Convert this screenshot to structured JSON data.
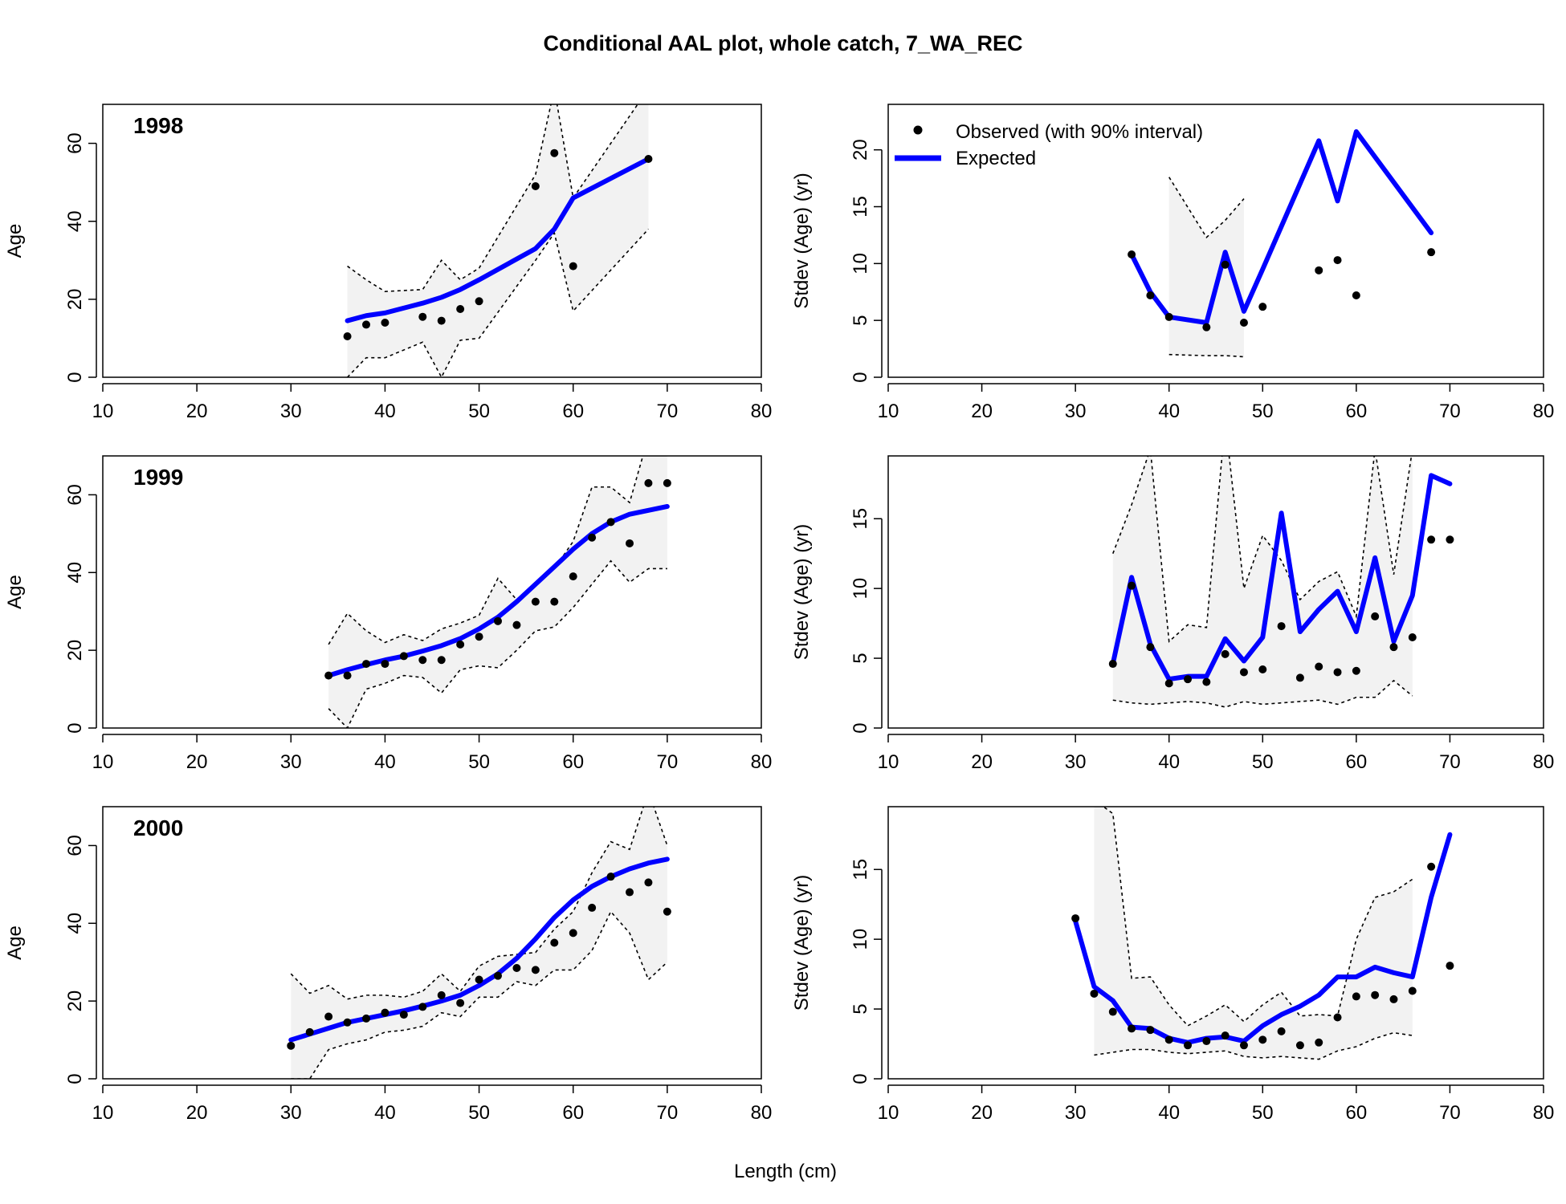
{
  "figure": {
    "title": "Conditional AAL plot, whole catch, 7_WA_REC",
    "xlabel": "Length (cm)",
    "colors": {
      "expected": "#0000ff",
      "observed": "#000000",
      "interval_fill": "#f2f2f2",
      "axis": "#000000"
    }
  },
  "legend": {
    "observed_label": "Observed (with 90% interval)",
    "expected_label": "Expected",
    "placement": "top-left of first stdev panel"
  },
  "chart_data": [
    {
      "type": "line",
      "panel": "age-1998",
      "year_label": "1998",
      "ylabel": "Age",
      "xlim": [
        10,
        80
      ],
      "ylim": [
        0,
        70
      ],
      "xticks": [
        10,
        20,
        30,
        40,
        50,
        60,
        70,
        80
      ],
      "yticks": [
        0,
        20,
        40,
        60
      ],
      "x": [
        36,
        38,
        40,
        44,
        46,
        48,
        50,
        56,
        58,
        60,
        68
      ],
      "observed": [
        10.5,
        13.5,
        14,
        15.5,
        14.5,
        17.5,
        19.5,
        49,
        57.5,
        28.5,
        56
      ],
      "expected": [
        14.5,
        15.8,
        16.5,
        19,
        20.5,
        22.5,
        25,
        33,
        38,
        46,
        56
      ],
      "lower": [
        0,
        5,
        5,
        9,
        0,
        9.5,
        10,
        30,
        37,
        17,
        38
      ],
      "upper": [
        28.5,
        25,
        22,
        22.5,
        30,
        25,
        28,
        52,
        74,
        46,
        74
      ]
    },
    {
      "type": "line",
      "panel": "stdev-1998",
      "ylabel": "Stdev (Age) (yr)",
      "xlim": [
        10,
        80
      ],
      "ylim": [
        0,
        24
      ],
      "xticks": [
        10,
        20,
        30,
        40,
        50,
        60,
        70,
        80
      ],
      "yticks": [
        0,
        5,
        10,
        15,
        20
      ],
      "x": [
        36,
        38,
        40,
        44,
        46,
        48,
        50,
        56,
        58,
        60,
        68
      ],
      "observed": [
        10.8,
        7.2,
        5.3,
        4.4,
        9.9,
        4.8,
        6.2,
        9.4,
        10.3,
        7.2,
        11
      ],
      "expected": [
        10.8,
        7.5,
        5.3,
        4.8,
        11,
        5.8,
        9.5,
        20.8,
        15.5,
        21.6,
        12.7
      ],
      "band_x": [
        40,
        44,
        46,
        48
      ],
      "band_lower": [
        2,
        1.9,
        1.9,
        1.8
      ],
      "band_upper": [
        17.6,
        12.3,
        13.8,
        15.7
      ]
    },
    {
      "type": "line",
      "panel": "age-1999",
      "year_label": "1999",
      "ylabel": "Age",
      "xlim": [
        10,
        80
      ],
      "ylim": [
        0,
        70
      ],
      "xticks": [
        10,
        20,
        30,
        40,
        50,
        60,
        70,
        80
      ],
      "yticks": [
        0,
        20,
        40,
        60
      ],
      "x": [
        34,
        36,
        38,
        40,
        42,
        44,
        46,
        48,
        50,
        52,
        54,
        56,
        58,
        60,
        62,
        64,
        66,
        68,
        70
      ],
      "observed": [
        13.5,
        13.5,
        16.5,
        16.5,
        18.5,
        17.5,
        17.5,
        21.5,
        23.5,
        27.5,
        26.5,
        32.5,
        32.5,
        39,
        49,
        53,
        47.5,
        63,
        63
      ],
      "expected": [
        13.5,
        15,
        16.3,
        17.5,
        18.5,
        19.8,
        21.2,
        23,
        25.5,
        28.5,
        32.5,
        37,
        41.5,
        46,
        50,
        53,
        55,
        56,
        57
      ],
      "lower": [
        5,
        0,
        10,
        11.5,
        13.5,
        13,
        9,
        15,
        16,
        15.5,
        20,
        25,
        26,
        31,
        37,
        43,
        37.5,
        41,
        41
      ],
      "upper": [
        21.5,
        29.5,
        25,
        22,
        24,
        22.5,
        25.5,
        27,
        29,
        38.5,
        33,
        37.5,
        41,
        48,
        62,
        62,
        58,
        75,
        75
      ]
    },
    {
      "type": "line",
      "panel": "stdev-1999",
      "ylabel": "Stdev (Age) (yr)",
      "xlim": [
        10,
        80
      ],
      "ylim": [
        0,
        19.5
      ],
      "xticks": [
        10,
        20,
        30,
        40,
        50,
        60,
        70,
        80
      ],
      "yticks": [
        0,
        5,
        10,
        15
      ],
      "x": [
        34,
        36,
        38,
        40,
        42,
        44,
        46,
        48,
        50,
        52,
        54,
        56,
        58,
        60,
        62,
        64,
        66,
        68,
        70
      ],
      "observed": [
        4.6,
        10.2,
        5.8,
        3.2,
        3.5,
        3.3,
        5.3,
        4,
        4.2,
        7.3,
        3.6,
        4.4,
        4,
        4.1,
        8,
        5.8,
        6.5,
        13.5,
        13.5
      ],
      "expected": [
        4.6,
        10.8,
        6,
        3.5,
        3.7,
        3.7,
        6.4,
        4.8,
        6.5,
        15.4,
        6.9,
        8.5,
        9.8,
        6.9,
        12.2,
        6.2,
        9.5,
        18.1,
        17.5
      ],
      "band_x": [
        34,
        36,
        38,
        40,
        42,
        44,
        46,
        48,
        50,
        52,
        54,
        56,
        58,
        60,
        62,
        64,
        66
      ],
      "band_lower": [
        2,
        1.8,
        1.7,
        1.8,
        1.9,
        1.8,
        1.5,
        1.9,
        1.7,
        1.8,
        1.9,
        2,
        1.7,
        2.2,
        2.2,
        3.4,
        2.3
      ],
      "band_upper": [
        12.5,
        16,
        20,
        6.2,
        7.4,
        7.2,
        22,
        10,
        13.8,
        12,
        9.2,
        10.5,
        11.2,
        8,
        20,
        11,
        20
      ]
    },
    {
      "type": "line",
      "panel": "age-2000",
      "year_label": "2000",
      "ylabel": "Age",
      "xlim": [
        10,
        80
      ],
      "ylim": [
        0,
        70
      ],
      "xticks": [
        10,
        20,
        30,
        40,
        50,
        60,
        70,
        80
      ],
      "yticks": [
        0,
        20,
        40,
        60
      ],
      "x": [
        30,
        32,
        34,
        36,
        38,
        40,
        42,
        44,
        46,
        48,
        50,
        52,
        54,
        56,
        58,
        60,
        62,
        64,
        66,
        68,
        70
      ],
      "observed": [
        8.5,
        12,
        16,
        14.5,
        15.5,
        17,
        16.5,
        18.5,
        21.5,
        19.5,
        25.5,
        26.5,
        28.5,
        28,
        35,
        37.5,
        44,
        52,
        48,
        50.5,
        43
      ],
      "expected": [
        10,
        11.5,
        13,
        14.5,
        15.5,
        16.5,
        17.5,
        18.7,
        20,
        21.5,
        24,
        27,
        31,
        36,
        41.5,
        46,
        49.5,
        52,
        54,
        55.5,
        56.5
      ],
      "lower": [
        0,
        0,
        7.5,
        9,
        10,
        12,
        12.5,
        13.5,
        17,
        16,
        21,
        21,
        25,
        24,
        28,
        28,
        33,
        43,
        37.5,
        25.5,
        30
      ],
      "upper": [
        27,
        22,
        24,
        20.5,
        21.5,
        21.5,
        21,
        22.5,
        27,
        22.5,
        29,
        31.5,
        32,
        32.5,
        38.5,
        43,
        53,
        61,
        59,
        74,
        60
      ]
    },
    {
      "type": "line",
      "panel": "stdev-2000",
      "ylabel": "Stdev (Age) (yr)",
      "xlim": [
        10,
        80
      ],
      "ylim": [
        0,
        19.5
      ],
      "xticks": [
        10,
        20,
        30,
        40,
        50,
        60,
        70,
        80
      ],
      "yticks": [
        0,
        5,
        10,
        15
      ],
      "x": [
        30,
        32,
        34,
        36,
        38,
        40,
        42,
        44,
        46,
        48,
        50,
        52,
        54,
        56,
        58,
        60,
        62,
        64,
        66,
        68,
        70
      ],
      "observed": [
        11.5,
        6.1,
        4.8,
        3.6,
        3.5,
        2.8,
        2.4,
        2.7,
        3.1,
        2.4,
        2.8,
        3.4,
        2.4,
        2.6,
        4.4,
        5.9,
        6,
        5.7,
        6.3,
        15.2,
        8.1
      ],
      "expected": [
        11.3,
        6.6,
        5.6,
        3.7,
        3.6,
        2.9,
        2.6,
        2.9,
        3,
        2.7,
        3.8,
        4.6,
        5.2,
        6,
        7.3,
        7.3,
        8,
        7.6,
        7.3,
        13,
        17.5
      ],
      "band_x": [
        32,
        34,
        36,
        38,
        40,
        42,
        44,
        46,
        48,
        50,
        52,
        54,
        56,
        58,
        60,
        62,
        64,
        66
      ],
      "band_lower": [
        1.7,
        1.9,
        2.1,
        2.1,
        1.9,
        1.8,
        1.9,
        2,
        1.6,
        1.5,
        1.6,
        1.5,
        1.4,
        2,
        2.3,
        2.9,
        3.3,
        3.1
      ],
      "band_upper": [
        20,
        19,
        7.2,
        7.3,
        5.3,
        3.8,
        4.5,
        5.3,
        4.1,
        5.3,
        6.2,
        4.5,
        4.6,
        4.5,
        10,
        13,
        13.4,
        14.3
      ]
    }
  ]
}
